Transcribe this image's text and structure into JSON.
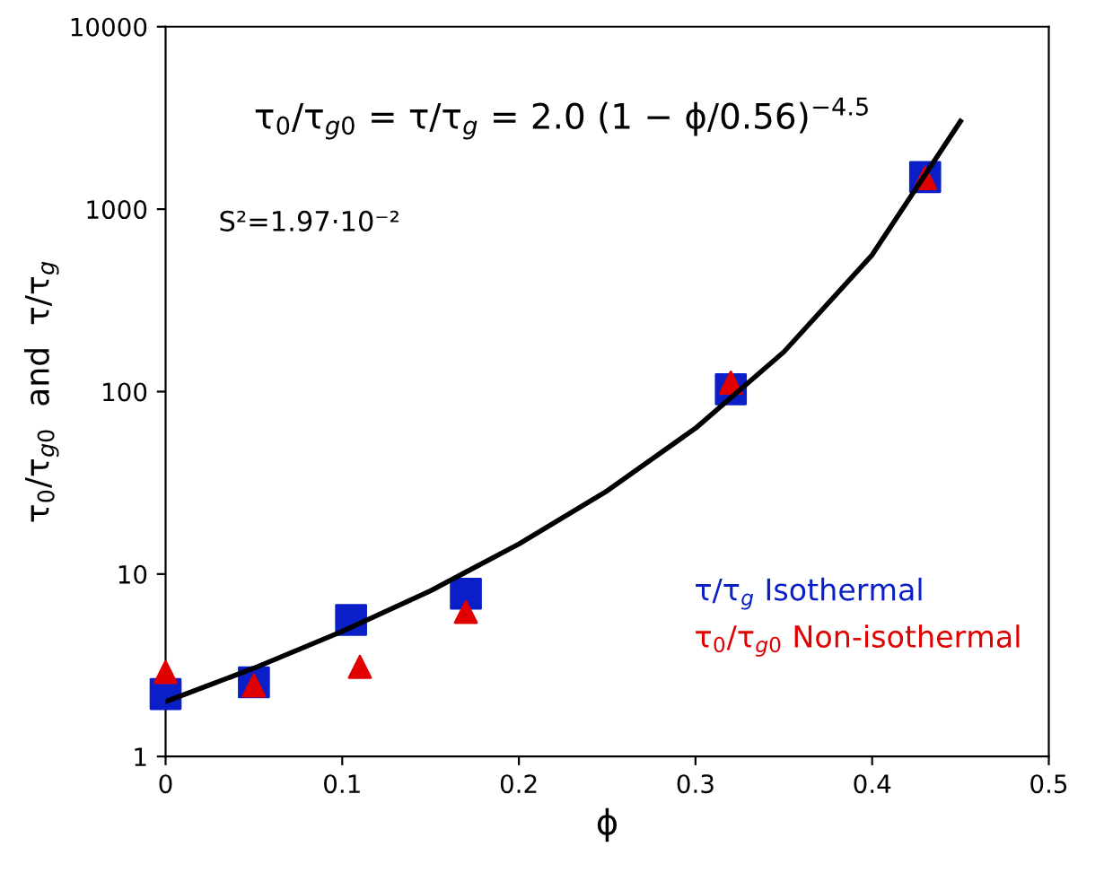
{
  "chart_data": {
    "type": "scatter",
    "xlabel": "ϕ",
    "ylabel": "τ$_{0}$/τ$_{g0}$  and  τ/τ$_{g}$",
    "xlim": [
      0,
      0.5
    ],
    "xticks": [
      0,
      0.1,
      0.2,
      0.3,
      0.4,
      0.5
    ],
    "ylim": [
      1,
      10000
    ],
    "yticks": [
      1,
      10,
      100,
      1000,
      10000
    ],
    "log": "y",
    "grid": false,
    "legend": "bottom right",
    "annotations": [
      "τ$_{0}$/τ$_{g0}$ = τ/τ$_{g}$ = 2.0 (1 − ϕ/0.56)$^{−4.5}$",
      "S²=1.97·10⁻²"
    ],
    "series": [
      {
        "name": "τ/τ$_{g}$ Isothermal",
        "marker": "square",
        "color": "#0a1fc8",
        "x": [
          0,
          0.05,
          0.105,
          0.17,
          0.32,
          0.43
        ],
        "values": [
          2.2,
          2.55,
          5.6,
          7.8,
          103,
          1500
        ]
      },
      {
        "name": "τ$_{0}$/τ$_{g0}$ Non-isothermal",
        "marker": "triangle",
        "color": "#e00000",
        "x": [
          0,
          0.05,
          0.11,
          0.17,
          0.32,
          0.43
        ],
        "values": [
          2.9,
          2.45,
          3.1,
          6.2,
          112,
          1480
        ]
      },
      {
        "type": "line",
        "marker": "none",
        "color": "#000000",
        "x": [
          0,
          0.05,
          0.1,
          0.15,
          0.2,
          0.25,
          0.3,
          0.35,
          0.4,
          0.45
        ],
        "values": [
          2,
          3.05,
          4.85,
          8.1,
          14.6,
          28.6,
          63,
          165,
          562,
          3030
        ]
      }
    ]
  }
}
